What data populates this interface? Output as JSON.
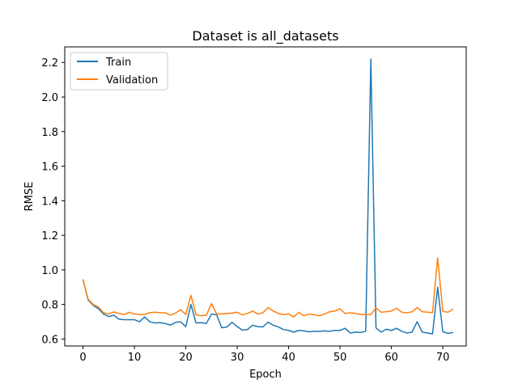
{
  "chart_data": {
    "type": "line",
    "title": "Dataset is all_datasets",
    "xlabel": "Epoch",
    "ylabel": "RMSE",
    "xlim": [
      -3.55,
      74.55
    ],
    "ylim": [
      0.56,
      2.29
    ],
    "xticks": [
      0,
      10,
      20,
      30,
      40,
      50,
      60,
      70
    ],
    "yticks": [
      0.6,
      0.8,
      1.0,
      1.2,
      1.4,
      1.6,
      1.8,
      2.0,
      2.2
    ],
    "ytick_labels": [
      "0.6",
      "0.8",
      "1.0",
      "1.2",
      "1.4",
      "1.6",
      "1.8",
      "2.0",
      "2.2"
    ],
    "grid": false,
    "legend_position": "top-left",
    "series": [
      {
        "name": "Train",
        "color": "#1f77b4",
        "values": [
          0.945,
          0.826,
          0.795,
          0.775,
          0.745,
          0.73,
          0.738,
          0.715,
          0.712,
          0.712,
          0.712,
          0.7,
          0.728,
          0.7,
          0.693,
          0.695,
          0.69,
          0.681,
          0.696,
          0.7,
          0.672,
          0.8,
          0.693,
          0.695,
          0.69,
          0.745,
          0.74,
          0.665,
          0.67,
          0.697,
          0.672,
          0.652,
          0.655,
          0.68,
          0.672,
          0.67,
          0.698,
          0.68,
          0.67,
          0.655,
          0.65,
          0.64,
          0.65,
          0.647,
          0.642,
          0.645,
          0.645,
          0.647,
          0.645,
          0.65,
          0.65,
          0.662,
          0.635,
          0.64,
          0.638,
          0.645,
          2.22,
          0.665,
          0.64,
          0.657,
          0.65,
          0.662,
          0.645,
          0.635,
          0.64,
          0.7,
          0.64,
          0.635,
          0.63,
          0.9,
          0.642,
          0.633,
          0.638
        ]
      },
      {
        "name": "Validation",
        "color": "#ff7f0e",
        "values": [
          0.945,
          0.83,
          0.8,
          0.785,
          0.752,
          0.745,
          0.757,
          0.748,
          0.742,
          0.755,
          0.745,
          0.742,
          0.742,
          0.753,
          0.755,
          0.752,
          0.752,
          0.738,
          0.75,
          0.77,
          0.742,
          0.853,
          0.74,
          0.735,
          0.738,
          0.805,
          0.745,
          0.745,
          0.748,
          0.75,
          0.755,
          0.74,
          0.748,
          0.762,
          0.745,
          0.752,
          0.782,
          0.762,
          0.748,
          0.742,
          0.745,
          0.728,
          0.755,
          0.735,
          0.745,
          0.74,
          0.735,
          0.745,
          0.758,
          0.762,
          0.775,
          0.748,
          0.752,
          0.748,
          0.742,
          0.742,
          0.742,
          0.78,
          0.755,
          0.758,
          0.762,
          0.778,
          0.755,
          0.752,
          0.757,
          0.782,
          0.758,
          0.755,
          0.753,
          1.07,
          0.76,
          0.755,
          0.773
        ]
      }
    ]
  }
}
